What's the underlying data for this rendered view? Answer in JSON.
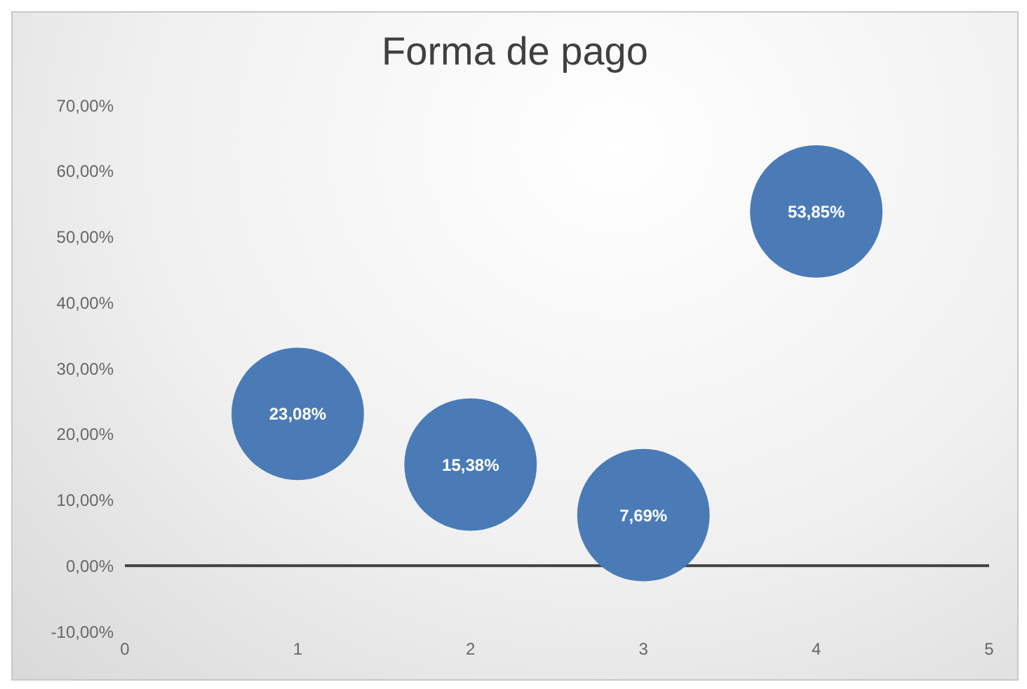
{
  "chart_data": {
    "type": "bubble",
    "title": "Forma de pago",
    "x": [
      1,
      2,
      3,
      4
    ],
    "values": [
      23.08,
      15.38,
      7.69,
      53.85
    ],
    "sizes": [
      1,
      1,
      1,
      1
    ],
    "value_labels": [
      "23,08%",
      "15,38%",
      "7,69%",
      "53,85%"
    ],
    "color": "#4a7bb7",
    "xlim": [
      0,
      5
    ],
    "xticks": [
      0,
      1,
      2,
      3,
      4,
      5
    ],
    "ylim": [
      -10,
      70
    ],
    "yticks": [
      {
        "value": -10,
        "label": "-10,00%"
      },
      {
        "value": 0,
        "label": "0,00%"
      },
      {
        "value": 10,
        "label": "10,00%"
      },
      {
        "value": 20,
        "label": "20,00%"
      },
      {
        "value": 30,
        "label": "30,00%"
      },
      {
        "value": 40,
        "label": "40,00%"
      },
      {
        "value": 50,
        "label": "50,00%"
      },
      {
        "value": 60,
        "label": "60,00%"
      },
      {
        "value": 70,
        "label": "70,00%"
      }
    ],
    "ref_lines": [
      {
        "axis": "y",
        "value": 0,
        "color": "#404040"
      }
    ],
    "grid": false,
    "legend": false
  }
}
